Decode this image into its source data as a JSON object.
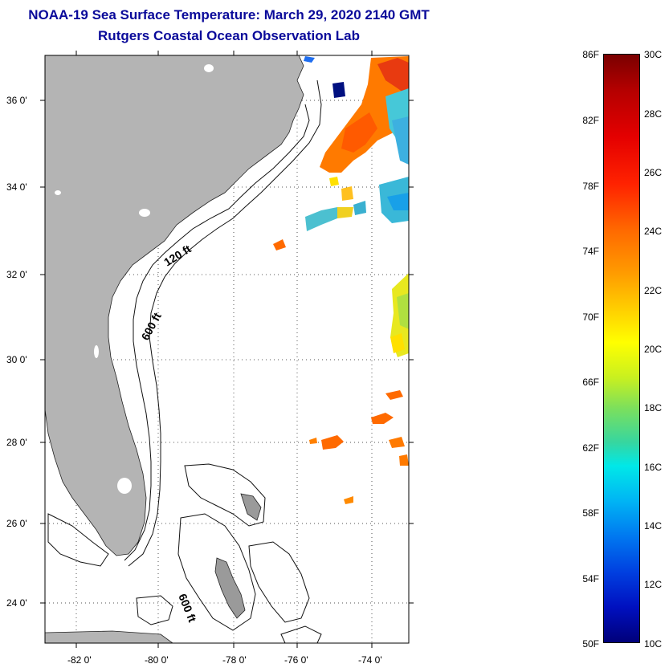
{
  "title_line1": "NOAA-19 Sea Surface Temperature:  March 29, 2020 2140 GMT",
  "title_line2": "Rutgers Coastal Ocean Observation Lab",
  "map": {
    "lat_labels": [
      "36 0'",
      "34 0'",
      "32 0'",
      "30 0'",
      "28 0'",
      "26 0'",
      "24 0'"
    ],
    "lon_labels": [
      "-82 0'",
      "-80 0'",
      "-78 0'",
      "-76 0'",
      "-74 0'"
    ],
    "isobath_labels": [
      "120 ft",
      "600 ft",
      "600 ft"
    ],
    "land_color": "#b4b4b4"
  },
  "colorbar": {
    "f_labels": [
      "86F",
      "82F",
      "78F",
      "74F",
      "70F",
      "66F",
      "62F",
      "58F",
      "54F",
      "50F"
    ],
    "c_labels": [
      "30C",
      "28C",
      "26C",
      "24C",
      "22C",
      "20C",
      "18C",
      "16C",
      "14C",
      "12C",
      "10C"
    ]
  }
}
